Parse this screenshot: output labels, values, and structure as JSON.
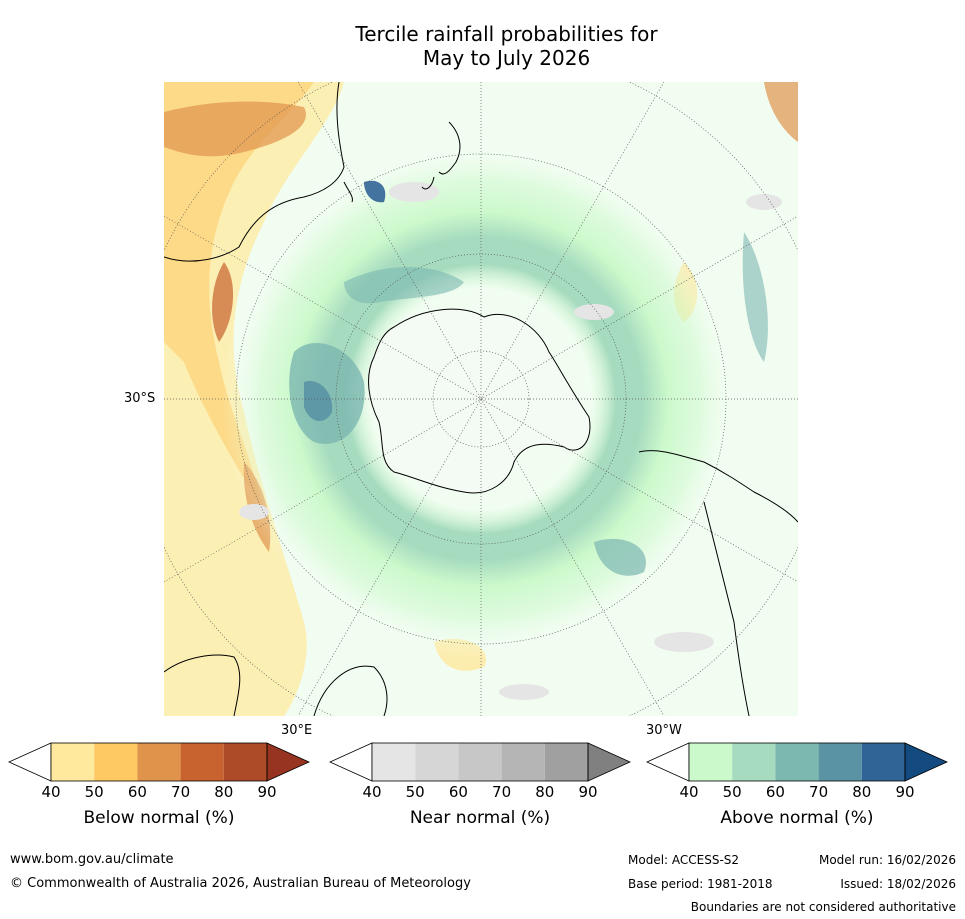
{
  "title": {
    "line1": "Tercile rainfall probabilities for",
    "line2": "May to July 2026"
  },
  "map": {
    "projection": "south polar stereographic",
    "lat_label": "30°S",
    "lon_label_east": "30°E",
    "lon_label_west": "30°W"
  },
  "colorbars": [
    {
      "label": "Below normal (%)",
      "ticks": [
        "40",
        "50",
        "60",
        "70",
        "80",
        "90"
      ],
      "colors": [
        "#ffffff",
        "#fee99d",
        "#fec963",
        "#e0934b",
        "#c8632f",
        "#ad4a27",
        "#973421"
      ]
    },
    {
      "label": "Near normal (%)",
      "ticks": [
        "40",
        "50",
        "60",
        "70",
        "80",
        "90"
      ],
      "colors": [
        "#ffffff",
        "#e5e5e5",
        "#d6d6d6",
        "#c7c7c7",
        "#b5b5b5",
        "#a0a0a0",
        "#808080"
      ]
    },
    {
      "label": "Above normal (%)",
      "ticks": [
        "40",
        "50",
        "60",
        "70",
        "80",
        "90"
      ],
      "colors": [
        "#ffffff",
        "#ccf9cc",
        "#a6dbbf",
        "#7cb7b0",
        "#5a94a4",
        "#316496",
        "#134a80"
      ]
    }
  ],
  "footer": {
    "url": "www.bom.gov.au/climate",
    "copyright": "© Commonwealth of Australia 2026, Australian Bureau of Meteorology",
    "model": "Model: ACCESS-S2",
    "base_period": "Base period: 1981-2018",
    "model_run": "Model run: 16/02/2026",
    "issued": "Issued: 18/02/2026",
    "disclaimer": "Boundaries are not considered authoritative"
  }
}
